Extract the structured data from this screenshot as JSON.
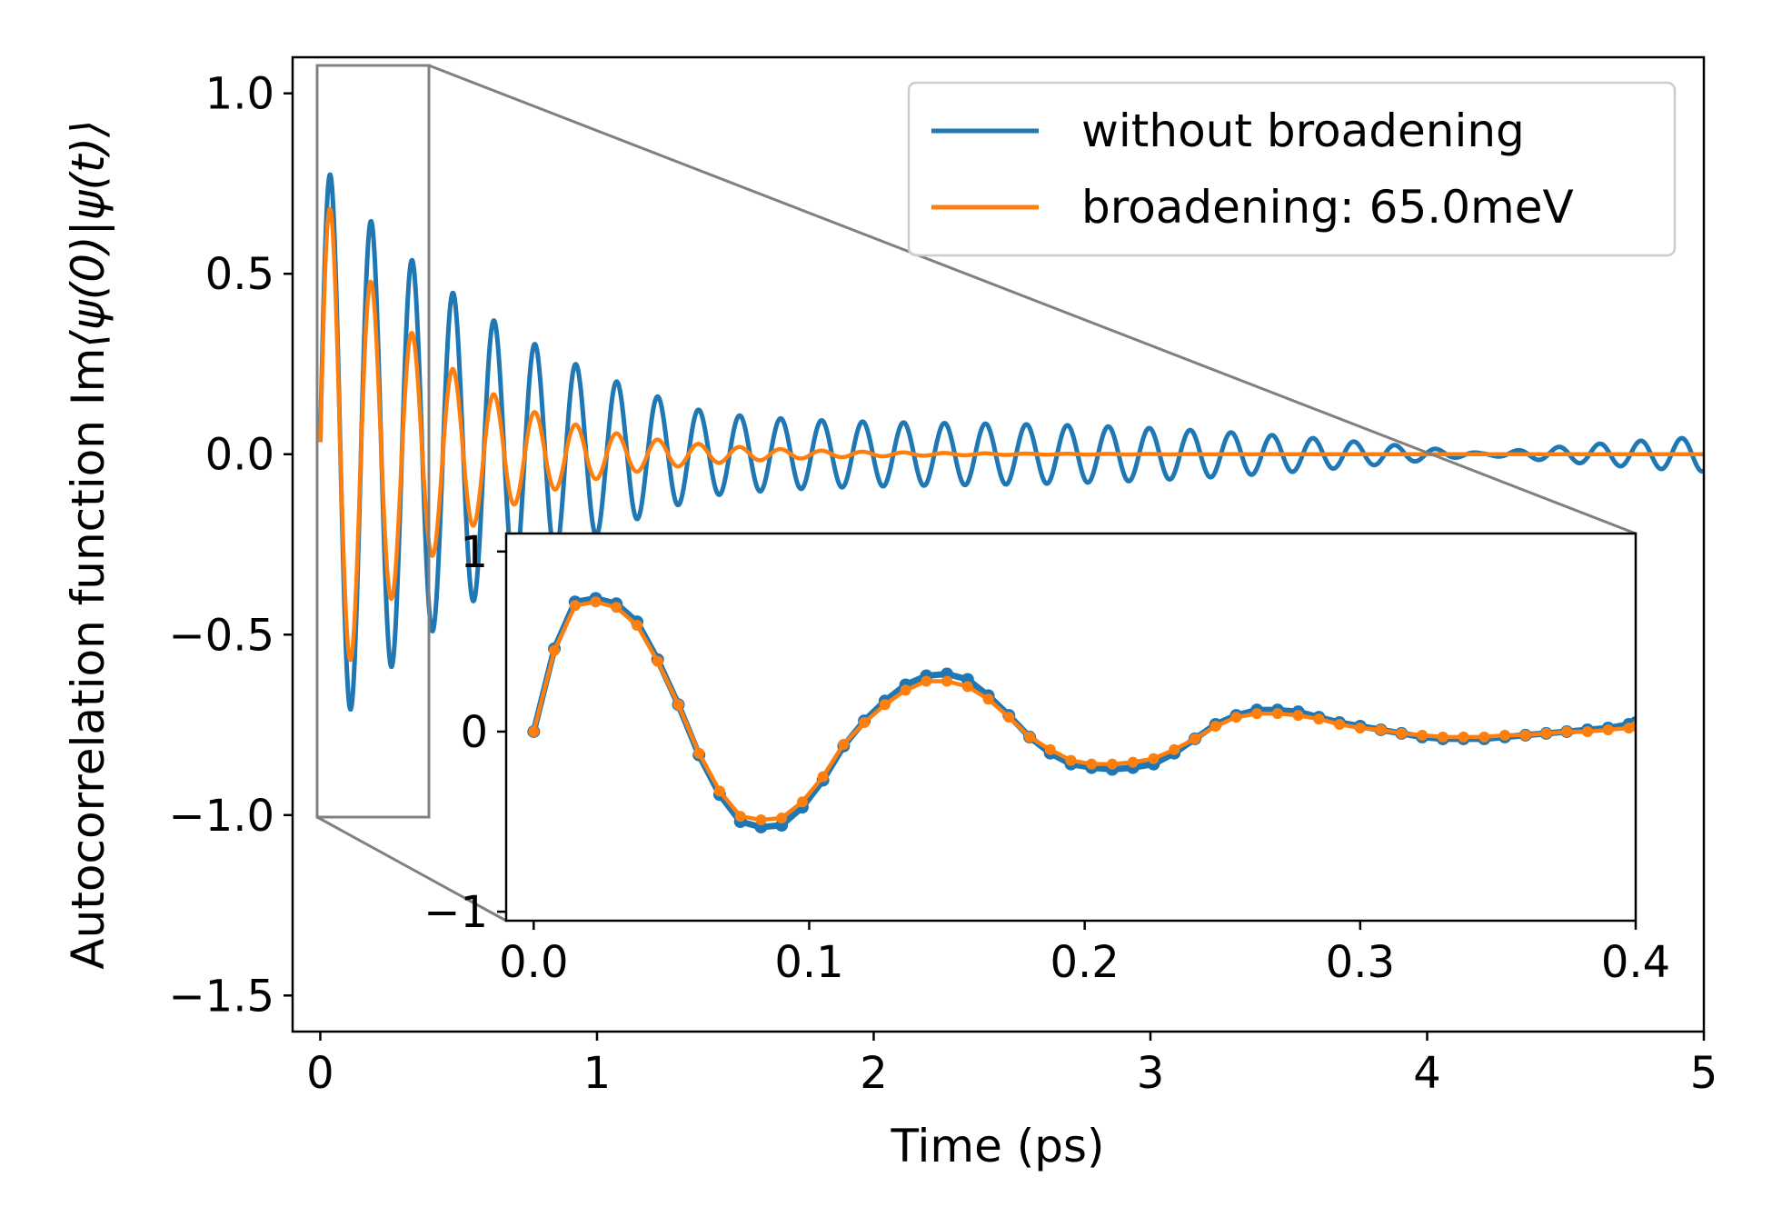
{
  "chart_data": [
    {
      "type": "line",
      "role": "main",
      "xlabel": "Time (ps)",
      "ylabel_prefix": "Autocorrelation function Im",
      "ylabel_math": "⟨ψ(0)|ψ(t)⟩",
      "xlim": [
        -0.1,
        5.0
      ],
      "ylim": [
        -1.6,
        1.1
      ],
      "xticks": [
        0,
        1,
        2,
        3,
        4,
        5
      ],
      "xtick_labels": [
        "0",
        "1",
        "2",
        "3",
        "4",
        "5"
      ],
      "yticks": [
        1.0,
        0.5,
        0.0,
        -0.5,
        -1.0,
        -1.5
      ],
      "ytick_labels": [
        "1.0",
        "0.5",
        "0.0",
        "−0.5",
        "−1.0",
        "−1.5"
      ],
      "legend_position": "upper-right",
      "zoom_region": {
        "x": [
          0.0,
          0.4
        ],
        "y": [
          -1.0,
          1.08
        ]
      },
      "series": [
        {
          "name": "without broadening",
          "color": "#1f77b4",
          "model": {
            "amplitude": 0.75,
            "carrier_ps": 0.148,
            "beat_ps": 2.8,
            "decay_ps": 0.75,
            "floor": 0.06,
            "phase_shift": 0.045
          }
        },
        {
          "name": "broadening: 65.0meV",
          "color": "#ff7f0e",
          "model": {
            "amplitude": 0.74,
            "carrier_ps": 0.148,
            "decay_ps": 0.42,
            "phase_shift": 0.045
          }
        }
      ]
    },
    {
      "type": "line",
      "role": "inset",
      "xlim": [
        -0.01,
        0.4
      ],
      "ylim": [
        -1.05,
        1.1
      ],
      "xticks": [
        0.0,
        0.1,
        0.2,
        0.3,
        0.4
      ],
      "xtick_labels": [
        "0.0",
        "0.1",
        "0.2",
        "0.3",
        "0.4"
      ],
      "yticks": [
        1,
        0,
        -1
      ],
      "ytick_labels": [
        "1",
        "0",
        "−1"
      ],
      "markers": true,
      "series": [
        {
          "name": "without broadening",
          "color": "#1f77b4",
          "x": [
            0.0,
            0.0075,
            0.015,
            0.0225,
            0.03,
            0.0375,
            0.045,
            0.0525,
            0.06,
            0.0675,
            0.075,
            0.0825,
            0.09,
            0.0975,
            0.105,
            0.1125,
            0.12,
            0.1275,
            0.135,
            0.1425,
            0.15,
            0.1575,
            0.165,
            0.1725,
            0.18,
            0.1875,
            0.195,
            0.2025,
            0.21,
            0.2175,
            0.225,
            0.2325,
            0.24,
            0.2475,
            0.255,
            0.2625,
            0.27,
            0.2775,
            0.285,
            0.2925,
            0.3,
            0.3075,
            0.315,
            0.3225,
            0.33,
            0.3375,
            0.345,
            0.3525,
            0.36,
            0.3675,
            0.375,
            0.3825,
            0.39,
            0.3975,
            0.4
          ],
          "y": [
            0.0,
            0.46,
            0.72,
            0.74,
            0.71,
            0.61,
            0.4,
            0.15,
            -0.13,
            -0.35,
            -0.5,
            -0.53,
            -0.52,
            -0.42,
            -0.27,
            -0.08,
            0.06,
            0.17,
            0.26,
            0.31,
            0.32,
            0.29,
            0.2,
            0.09,
            -0.03,
            -0.12,
            -0.18,
            -0.2,
            -0.21,
            -0.2,
            -0.18,
            -0.12,
            -0.04,
            0.04,
            0.09,
            0.12,
            0.12,
            0.11,
            0.08,
            0.05,
            0.03,
            0.01,
            -0.01,
            -0.03,
            -0.04,
            -0.04,
            -0.04,
            -0.03,
            -0.02,
            -0.01,
            0.0,
            0.01,
            0.02,
            0.04,
            0.05
          ]
        },
        {
          "name": "broadening: 65.0meV",
          "color": "#ff7f0e",
          "x": [
            0.0,
            0.0075,
            0.015,
            0.0225,
            0.03,
            0.0375,
            0.045,
            0.0525,
            0.06,
            0.0675,
            0.075,
            0.0825,
            0.09,
            0.0975,
            0.105,
            0.1125,
            0.12,
            0.1275,
            0.135,
            0.1425,
            0.15,
            0.1575,
            0.165,
            0.1725,
            0.18,
            0.1875,
            0.195,
            0.2025,
            0.21,
            0.2175,
            0.225,
            0.2325,
            0.24,
            0.2475,
            0.255,
            0.2625,
            0.27,
            0.2775,
            0.285,
            0.2925,
            0.3,
            0.3075,
            0.315,
            0.3225,
            0.33,
            0.3375,
            0.345,
            0.3525,
            0.36,
            0.3675,
            0.375,
            0.3825,
            0.39,
            0.3975,
            0.4
          ],
          "y": [
            0.0,
            0.45,
            0.7,
            0.72,
            0.69,
            0.59,
            0.39,
            0.15,
            -0.12,
            -0.33,
            -0.47,
            -0.49,
            -0.48,
            -0.39,
            -0.25,
            -0.07,
            0.05,
            0.15,
            0.23,
            0.28,
            0.28,
            0.25,
            0.18,
            0.08,
            -0.03,
            -0.1,
            -0.16,
            -0.18,
            -0.18,
            -0.17,
            -0.15,
            -0.1,
            -0.04,
            0.03,
            0.08,
            0.1,
            0.1,
            0.09,
            0.07,
            0.04,
            0.02,
            0.01,
            -0.01,
            -0.02,
            -0.03,
            -0.03,
            -0.03,
            -0.02,
            -0.02,
            -0.01,
            0.0,
            0.0,
            0.01,
            0.02,
            0.03
          ]
        }
      ]
    }
  ]
}
